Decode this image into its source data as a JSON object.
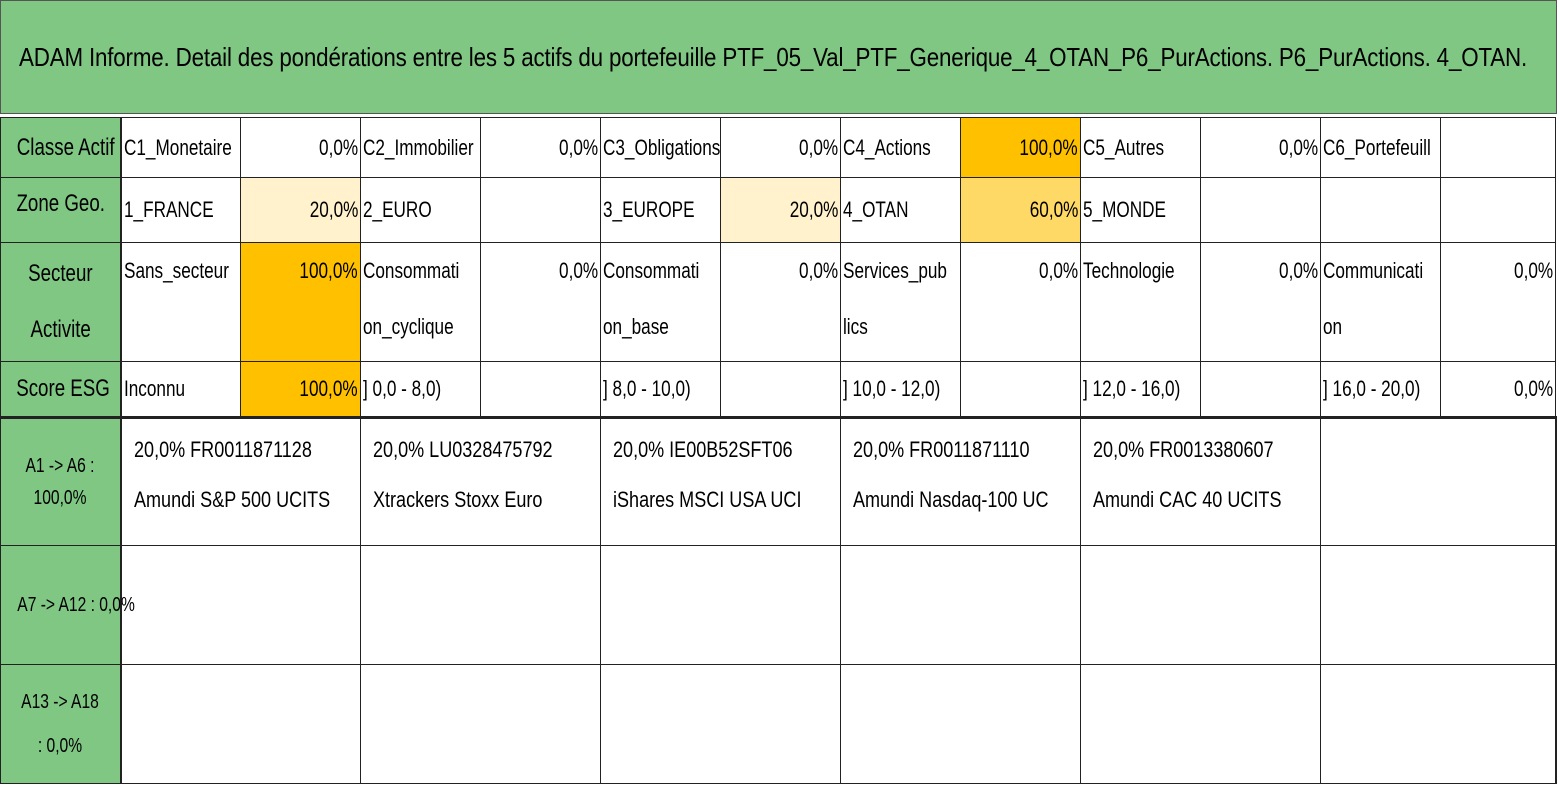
{
  "title": "ADAM Informe. Detail des pondérations entre les 5 actifs du portefeuille PTF_05_Val_PTF_Generique_4_OTAN_P6_PurActions. P6_PurActions. 4_OTAN.",
  "rows": {
    "classe": {
      "header": "Classe Actif",
      "items": [
        {
          "label": "C1_Monetaire",
          "value": "0,0%"
        },
        {
          "label": "C2_Immobilier",
          "value": "0,0%"
        },
        {
          "label": "C3_Obligations",
          "value": "0,0%"
        },
        {
          "label": "C4_Actions",
          "value": "100,0%"
        },
        {
          "label": "C5_Autres",
          "value": "0,0%"
        },
        {
          "label": "C6_Portefeuill",
          "value": ""
        }
      ]
    },
    "zone": {
      "header": "Zone Geo.",
      "items": [
        {
          "label": "1_FRANCE",
          "value": "20,0%"
        },
        {
          "label": "2_EURO",
          "value": ""
        },
        {
          "label": "3_EUROPE",
          "value": "20,0%"
        },
        {
          "label": "4_OTAN",
          "value": "60,0%"
        },
        {
          "label": "5_MONDE",
          "value": ""
        },
        {
          "label": "",
          "value": ""
        }
      ]
    },
    "secteur": {
      "header_line1": "Secteur",
      "header_line2": "Activite",
      "items": [
        {
          "label": "Sans_secteur",
          "value": "100,0%"
        },
        {
          "label": "Consommati on_cyclique",
          "value": "0,0%"
        },
        {
          "label": "Consommati on_base",
          "value": "0,0%"
        },
        {
          "label": "Services_pub lics",
          "value": "0,0%"
        },
        {
          "label": "Technologie",
          "value": "0,0%"
        },
        {
          "label": "Communicati on",
          "value": "0,0%"
        }
      ]
    },
    "esg": {
      "header": "Score ESG",
      "items": [
        {
          "label": "Inconnu",
          "value": "100,0%"
        },
        {
          "label": "] 0,0 - 8,0)",
          "value": ""
        },
        {
          "label": "] 8,0 - 10,0)",
          "value": ""
        },
        {
          "label": "] 10,0 - 12,0)",
          "value": ""
        },
        {
          "label": "] 12,0 - 16,0)",
          "value": ""
        },
        {
          "label": "] 16,0 - 20,0)",
          "value": "0,0%"
        }
      ]
    }
  },
  "assets": {
    "group1": {
      "header": "A1 -> A6 : 100,0%",
      "items": [
        {
          "line1": "20,0% FR0011871128",
          "line2": "Amundi S&P 500 UCITS"
        },
        {
          "line1": "20,0% LU0328475792",
          "line2": "Xtrackers Stoxx Euro"
        },
        {
          "line1": "20,0% IE00B52SFT06",
          "line2": "iShares MSCI USA UCI"
        },
        {
          "line1": "20,0% FR0011871110",
          "line2": "Amundi Nasdaq-100 UC"
        },
        {
          "line1": "20,0% FR0013380607",
          "line2": "Amundi CAC 40 UCITS"
        },
        {
          "line1": "",
          "line2": ""
        }
      ]
    },
    "group2": {
      "header": "A7 -> A12 : 0,0%"
    },
    "group3": {
      "header": "A13 -> A18 : 0,0%"
    }
  },
  "colors": {
    "header_green": "#7fc783",
    "weight_dark_orange": "#ffc000",
    "weight_mid_orange": "#ffd966",
    "weight_light_orange": "#fff2cc"
  }
}
